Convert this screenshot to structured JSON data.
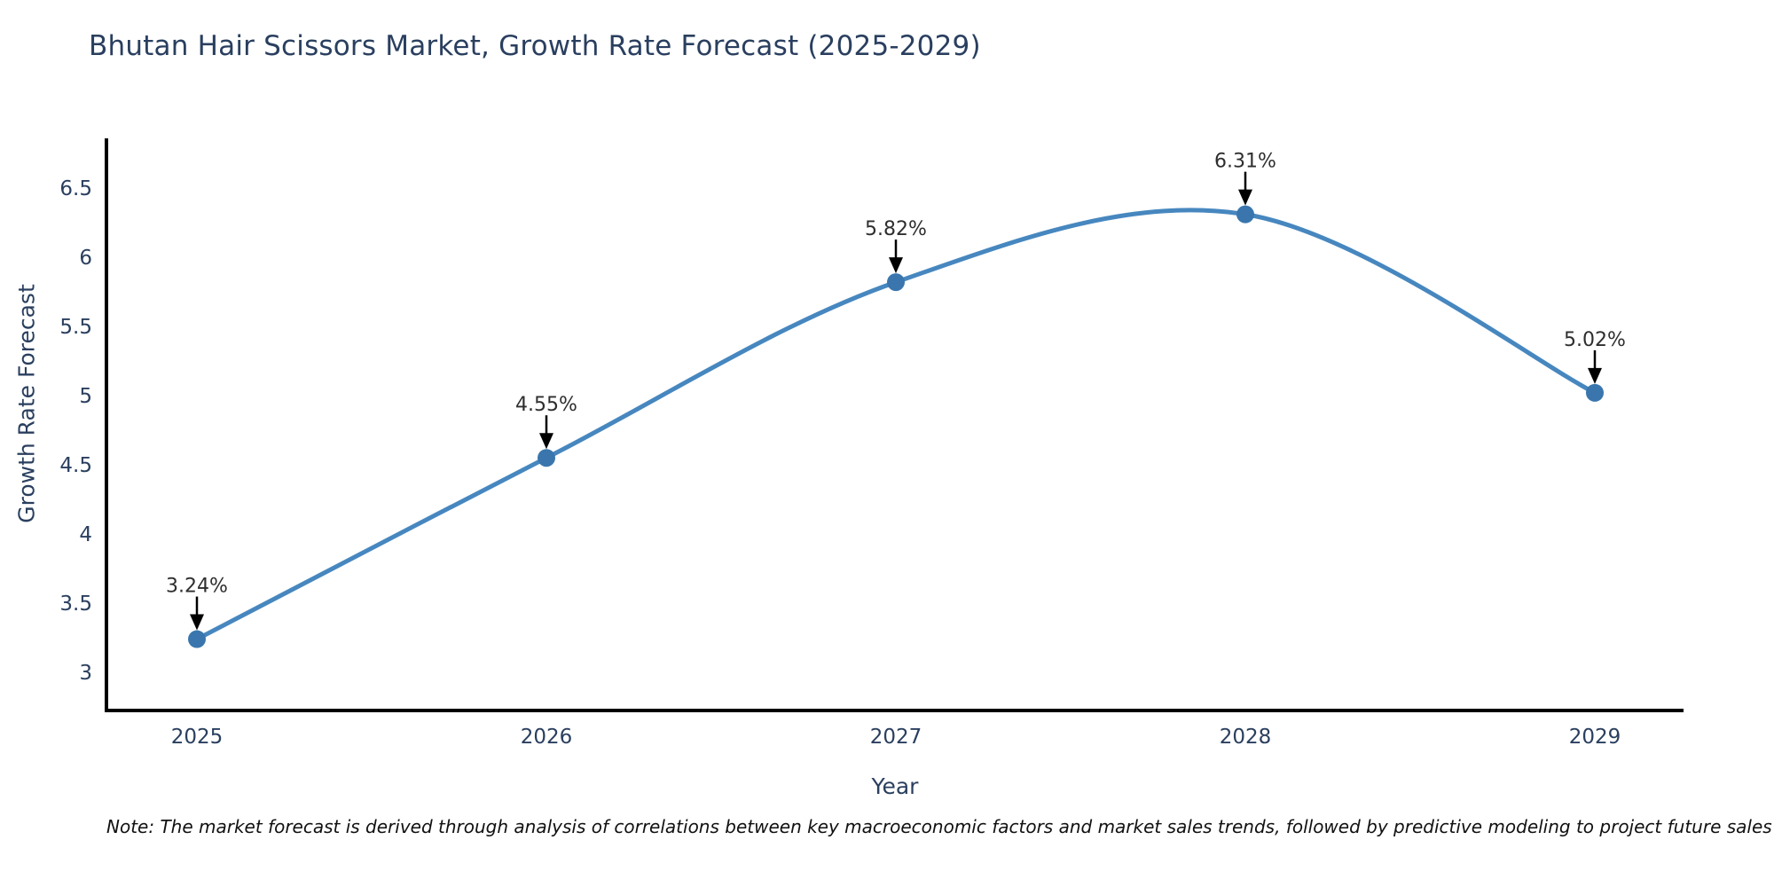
{
  "chart_data": {
    "type": "line",
    "line_shape": "spline",
    "title": "Bhutan Hair Scissors Market, Growth Rate Forecast (2025-2029)",
    "xlabel": "Year",
    "ylabel": "Growth Rate Forecast",
    "categories": [
      "2025",
      "2026",
      "2027",
      "2028",
      "2029"
    ],
    "series": [
      {
        "name": "Growth Rate Forecast",
        "values": [
          3.24,
          4.55,
          5.82,
          6.31,
          5.02
        ]
      }
    ],
    "point_labels": [
      "3.24%",
      "4.55%",
      "5.82%",
      "6.31%",
      "5.02%"
    ],
    "yticks": [
      3,
      3.5,
      4,
      4.5,
      5,
      5.5,
      6,
      6.5
    ],
    "ylim": [
      2.72,
      6.86
    ],
    "grid": false,
    "legend": "none",
    "colors": {
      "line": "#4787bf",
      "marker": "#3a76ad",
      "axis": "#000000",
      "tick_text": "#2a3f5f",
      "axis_title_text": "#2a3f5f",
      "title_text": "#2a3f5f",
      "annotation_text": "#2e2e2e",
      "arrow": "#000000"
    }
  },
  "note": {
    "text": "Note: The market forecast is derived through analysis of correlations between key macroeconomic factors and market sales trends, followed by predictive modeling to project future sales"
  }
}
